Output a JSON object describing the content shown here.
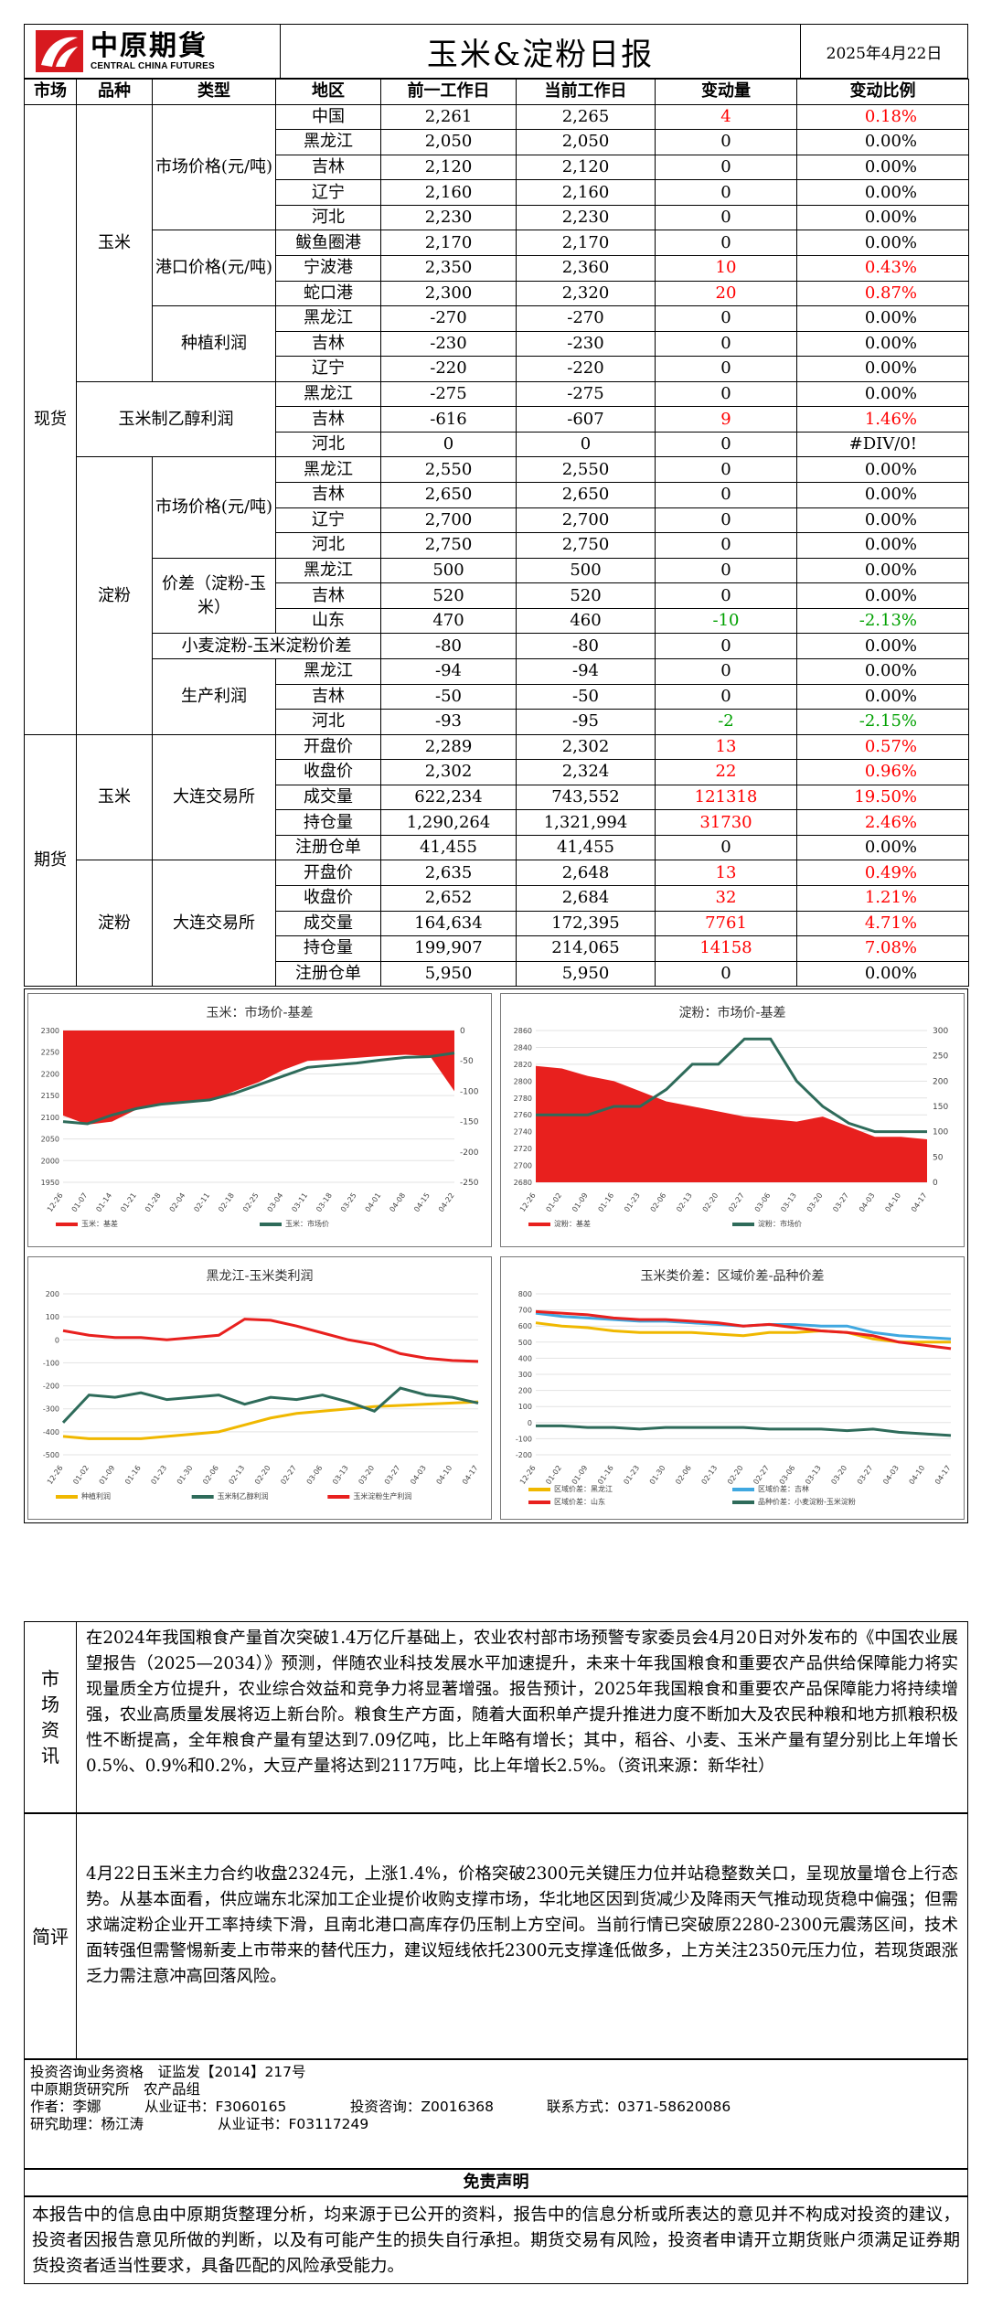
{
  "header": {
    "logo_cn": "中原期貨",
    "logo_en": "CENTRAL CHINA FUTURES",
    "title": "玉米&淀粉日报",
    "date": "2025年4月22日"
  },
  "table": {
    "headers": [
      "市场",
      "品种",
      "类型",
      "地区",
      "前一工作日",
      "当前工作日",
      "变动量",
      "变动比例"
    ],
    "groups": {
      "spot": "现货",
      "futures": "期货",
      "corn": "玉米",
      "starch": "淀粉",
      "market_price": "市场价格(元/吨)",
      "port_price": "港口价格(元/吨)",
      "planting_profit": "种植利润",
      "ethanol_profit": "玉米制乙醇利润",
      "starch_market_price": "市场价格(元/吨)",
      "spread": "价差（淀粉-玉米）",
      "wheat_spread": "小麦淀粉-玉米淀粉价差",
      "production_profit": "生产利润",
      "dce": "大连交易所"
    },
    "rows": [
      {
        "region": "中国",
        "prev": "2,261",
        "curr": "2,265",
        "chg": "4",
        "pct": "0.18%",
        "c": "red"
      },
      {
        "region": "黑龙江",
        "prev": "2,050",
        "curr": "2,050",
        "chg": "0",
        "pct": "0.00%",
        "c": ""
      },
      {
        "region": "吉林",
        "prev": "2,120",
        "curr": "2,120",
        "chg": "0",
        "pct": "0.00%",
        "c": ""
      },
      {
        "region": "辽宁",
        "prev": "2,160",
        "curr": "2,160",
        "chg": "0",
        "pct": "0.00%",
        "c": ""
      },
      {
        "region": "河北",
        "prev": "2,230",
        "curr": "2,230",
        "chg": "0",
        "pct": "0.00%",
        "c": ""
      },
      {
        "region": "鲅鱼圈港",
        "prev": "2,170",
        "curr": "2,170",
        "chg": "0",
        "pct": "0.00%",
        "c": ""
      },
      {
        "region": "宁波港",
        "prev": "2,350",
        "curr": "2,360",
        "chg": "10",
        "pct": "0.43%",
        "c": "red"
      },
      {
        "region": "蛇口港",
        "prev": "2,300",
        "curr": "2,320",
        "chg": "20",
        "pct": "0.87%",
        "c": "red"
      },
      {
        "region": "黑龙江",
        "prev": "-270",
        "curr": "-270",
        "chg": "0",
        "pct": "0.00%",
        "c": ""
      },
      {
        "region": "吉林",
        "prev": "-230",
        "curr": "-230",
        "chg": "0",
        "pct": "0.00%",
        "c": ""
      },
      {
        "region": "辽宁",
        "prev": "-220",
        "curr": "-220",
        "chg": "0",
        "pct": "0.00%",
        "c": ""
      },
      {
        "region": "黑龙江",
        "prev": "-275",
        "curr": "-275",
        "chg": "0",
        "pct": "0.00%",
        "c": ""
      },
      {
        "region": "吉林",
        "prev": "-616",
        "curr": "-607",
        "chg": "9",
        "pct": "1.46%",
        "c": "red"
      },
      {
        "region": "河北",
        "prev": "0",
        "curr": "0",
        "chg": "0",
        "pct": "#DIV/0!",
        "c": ""
      },
      {
        "region": "黑龙江",
        "prev": "2,550",
        "curr": "2,550",
        "chg": "0",
        "pct": "0.00%",
        "c": ""
      },
      {
        "region": "吉林",
        "prev": "2,650",
        "curr": "2,650",
        "chg": "0",
        "pct": "0.00%",
        "c": ""
      },
      {
        "region": "辽宁",
        "prev": "2,700",
        "curr": "2,700",
        "chg": "0",
        "pct": "0.00%",
        "c": ""
      },
      {
        "region": "河北",
        "prev": "2,750",
        "curr": "2,750",
        "chg": "0",
        "pct": "0.00%",
        "c": ""
      },
      {
        "region": "黑龙江",
        "prev": "500",
        "curr": "500",
        "chg": "0",
        "pct": "0.00%",
        "c": ""
      },
      {
        "region": "吉林",
        "prev": "520",
        "curr": "520",
        "chg": "0",
        "pct": "0.00%",
        "c": ""
      },
      {
        "region": "山东",
        "prev": "470",
        "curr": "460",
        "chg": "-10",
        "pct": "-2.13%",
        "c": "green"
      },
      {
        "region": "",
        "prev": "-80",
        "curr": "-80",
        "chg": "0",
        "pct": "0.00%",
        "c": ""
      },
      {
        "region": "黑龙江",
        "prev": "-94",
        "curr": "-94",
        "chg": "0",
        "pct": "0.00%",
        "c": ""
      },
      {
        "region": "吉林",
        "prev": "-50",
        "curr": "-50",
        "chg": "0",
        "pct": "0.00%",
        "c": ""
      },
      {
        "region": "河北",
        "prev": "-93",
        "curr": "-95",
        "chg": "-2",
        "pct": "-2.15%",
        "c": "green"
      },
      {
        "region": "开盘价",
        "prev": "2,289",
        "curr": "2,302",
        "chg": "13",
        "pct": "0.57%",
        "c": "red"
      },
      {
        "region": "收盘价",
        "prev": "2,302",
        "curr": "2,324",
        "chg": "22",
        "pct": "0.96%",
        "c": "red"
      },
      {
        "region": "成交量",
        "prev": "622,234",
        "curr": "743,552",
        "chg": "121318",
        "pct": "19.50%",
        "c": "red"
      },
      {
        "region": "持仓量",
        "prev": "1,290,264",
        "curr": "1,321,994",
        "chg": "31730",
        "pct": "2.46%",
        "c": "red"
      },
      {
        "region": "注册仓单",
        "prev": "41,455",
        "curr": "41,455",
        "chg": "0",
        "pct": "0.00%",
        "c": ""
      },
      {
        "region": "开盘价",
        "prev": "2,635",
        "curr": "2,648",
        "chg": "13",
        "pct": "0.49%",
        "c": "red"
      },
      {
        "region": "收盘价",
        "prev": "2,652",
        "curr": "2,684",
        "chg": "32",
        "pct": "1.21%",
        "c": "red"
      },
      {
        "region": "成交量",
        "prev": "164,634",
        "curr": "172,395",
        "chg": "7761",
        "pct": "4.71%",
        "c": "red"
      },
      {
        "region": "持仓量",
        "prev": "199,907",
        "curr": "214,065",
        "chg": "14158",
        "pct": "7.08%",
        "c": "red"
      },
      {
        "region": "注册仓单",
        "prev": "5,950",
        "curr": "5,950",
        "chg": "0",
        "pct": "0.00%",
        "c": ""
      }
    ]
  },
  "chart_data": [
    {
      "type": "area",
      "title": "玉米：市场价-基差",
      "x": [
        "12-26",
        "01-07",
        "01-14",
        "01-21",
        "01-28",
        "02-04",
        "02-11",
        "02-18",
        "02-25",
        "03-04",
        "03-11",
        "03-18",
        "03-25",
        "04-01",
        "04-08",
        "04-15",
        "04-22"
      ],
      "series": [
        {
          "name": "玉米：基差",
          "axis": "right",
          "color": "#e8201e",
          "values": [
            -140,
            -155,
            -150,
            -130,
            -120,
            -118,
            -115,
            -100,
            -85,
            -65,
            -50,
            -48,
            -45,
            -42,
            -40,
            -42,
            -100
          ]
        },
        {
          "name": "玉米：市场价",
          "axis": "left",
          "color": "#2e6b5a",
          "values": [
            2090,
            2085,
            2105,
            2120,
            2130,
            2135,
            2140,
            2155,
            2175,
            2195,
            2215,
            2220,
            2225,
            2232,
            2238,
            2240,
            2248
          ]
        }
      ],
      "ylim_left": [
        1950,
        2300
      ],
      "ylim_right": [
        -250,
        0
      ],
      "yticks_left": [
        "2300",
        "2250",
        "2200",
        "2150",
        "2100",
        "2050",
        "2000",
        "1950"
      ],
      "yticks_right": [
        "0",
        "-50",
        "-100",
        "-150",
        "-200",
        "-250"
      ],
      "legend": "bottom"
    },
    {
      "type": "area",
      "title": "淀粉：市场价-基差",
      "x": [
        "12-26",
        "01-02",
        "01-09",
        "01-16",
        "01-23",
        "02-06",
        "02-13",
        "02-20",
        "02-27",
        "03-06",
        "03-13",
        "03-20",
        "03-27",
        "04-03",
        "04-10",
        "04-17"
      ],
      "series": [
        {
          "name": "淀粉：基差",
          "axis": "right",
          "color": "#e8201e",
          "values": [
            230,
            225,
            210,
            200,
            180,
            160,
            150,
            140,
            130,
            125,
            120,
            130,
            110,
            90,
            90,
            85
          ]
        },
        {
          "name": "淀粉：市场价",
          "axis": "left",
          "color": "#2e6b5a",
          "values": [
            2760,
            2760,
            2760,
            2770,
            2770,
            2790,
            2820,
            2820,
            2850,
            2850,
            2800,
            2770,
            2750,
            2740,
            2740,
            2740
          ]
        }
      ],
      "ylim_left": [
        2680,
        2860
      ],
      "ylim_right": [
        0,
        300
      ],
      "yticks_left": [
        "2860",
        "2840",
        "2820",
        "2800",
        "2780",
        "2760",
        "2740",
        "2720",
        "2700",
        "2680"
      ],
      "yticks_right": [
        "300",
        "250",
        "200",
        "150",
        "100",
        "50",
        "0"
      ],
      "legend": "bottom"
    },
    {
      "type": "line",
      "title": "黑龙江-玉米类利润",
      "x": [
        "12-26",
        "01-02",
        "01-09",
        "01-16",
        "01-23",
        "01-30",
        "02-06",
        "02-13",
        "02-20",
        "02-27",
        "03-06",
        "03-13",
        "03-20",
        "03-27",
        "04-03",
        "04-10",
        "04-17"
      ],
      "series": [
        {
          "name": "种植利润",
          "color": "#f0b800",
          "values": [
            -420,
            -430,
            -430,
            -430,
            -420,
            -410,
            -400,
            -370,
            -340,
            -320,
            -310,
            -300,
            -290,
            -285,
            -280,
            -275,
            -270
          ]
        },
        {
          "name": "玉米制乙醇利润",
          "color": "#2e6b5a",
          "values": [
            -360,
            -240,
            -250,
            -230,
            -260,
            -250,
            -240,
            -280,
            -250,
            -260,
            -240,
            -270,
            -310,
            -210,
            -240,
            -250,
            -275
          ]
        },
        {
          "name": "玉米淀粉生产利润",
          "color": "#e8201e",
          "values": [
            40,
            20,
            10,
            10,
            0,
            10,
            20,
            90,
            85,
            60,
            30,
            0,
            -20,
            -60,
            -80,
            -90,
            -94
          ]
        }
      ],
      "ylim": [
        -500,
        200
      ],
      "yticks": [
        "200",
        "100",
        "0",
        "-100",
        "-200",
        "-300",
        "-400",
        "-500"
      ],
      "legend": "bottom"
    },
    {
      "type": "line",
      "title": "玉米类价差：区域价差-品种价差",
      "x": [
        "12-26",
        "01-02",
        "01-09",
        "01-16",
        "01-23",
        "01-30",
        "02-06",
        "02-13",
        "02-20",
        "02-27",
        "03-06",
        "03-13",
        "03-20",
        "03-27",
        "04-03",
        "04-10",
        "04-17"
      ],
      "series": [
        {
          "name": "区域价差：黑龙江",
          "color": "#f0b800",
          "values": [
            620,
            600,
            590,
            570,
            560,
            560,
            560,
            550,
            540,
            560,
            560,
            570,
            560,
            520,
            500,
            500,
            500
          ]
        },
        {
          "name": "区域价差：吉林",
          "color": "#40a8e0",
          "values": [
            680,
            660,
            650,
            640,
            630,
            630,
            620,
            610,
            600,
            610,
            610,
            600,
            600,
            560,
            540,
            530,
            520
          ]
        },
        {
          "name": "区域价差：山东",
          "color": "#e8201e",
          "values": [
            690,
            680,
            670,
            650,
            640,
            640,
            630,
            620,
            600,
            610,
            590,
            570,
            560,
            540,
            500,
            480,
            460
          ]
        },
        {
          "name": "品种价差：小麦淀粉-玉米淀粉",
          "color": "#2e6b5a",
          "values": [
            -20,
            -20,
            -30,
            -30,
            -40,
            -30,
            -30,
            -30,
            -30,
            -40,
            -40,
            -40,
            -50,
            -40,
            -60,
            -70,
            -80
          ]
        }
      ],
      "ylim": [
        -200,
        800
      ],
      "yticks": [
        "800",
        "700",
        "600",
        "500",
        "400",
        "300",
        "200",
        "100",
        "0",
        "-100",
        "-200"
      ],
      "legend": "bottom"
    }
  ],
  "market_info": {
    "label": "市场资讯",
    "text": "在2024年我国粮食产量首次突破1.4万亿斤基础上，农业农村部市场预警专家委员会4月20日对外发布的《中国农业展望报告（2025—2034）》预测，伴随农业科技发展水平加速提升，未来十年我国粮食和重要农产品供给保障能力将实现量质全方位提升，农业综合效益和竞争力将显著增强。报告预计，2025年我国粮食和重要农产品保障能力将持续增强，农业高质量发展将迈上新台阶。粮食生产方面，随着大面积单产提升推进力度不断加大及农民种粮和地方抓粮积极性不断提高，全年粮食产量有望达到7.09亿吨，比上年略有增长；其中，稻谷、小麦、玉米产量有望分别比上年增长0.5%、0.9%和0.2%，大豆产量将达到2117万吨，比上年增长2.5%。（资讯来源：新华社）"
  },
  "comment": {
    "label": "简评",
    "text": "4月22日玉米主力合约收盘2324元，上涨1.4%，价格突破2300元关键压力位并站稳整数关口，呈现放量增仓上行态势。从基本面看，供应端东北深加工企业提价收购支撑市场，华北地区因到货减少及降雨天气推动现货稳中偏强；但需求端淀粉企业开工率持续下滑，且南北港口高库存仍压制上方空间。当前行情已突破原2280-2300元震荡区间，技术面转强但需警惕新麦上市带来的替代压力，建议短线依托2300元支撑逢低做多，上方关注2350元压力位，若现货跟涨乏力需注意冲高回落风险。"
  },
  "footer": {
    "line1": "投资咨询业务资格　证监发【2014】217号",
    "line2": "中原期货研究所　农产品组",
    "author": "作者：李娜",
    "author_cert": "从业证书：F3060165",
    "invest_cert": "投资咨询：Z0016368",
    "contact": "联系方式：0371-58620086",
    "assistant": "研究助理：杨江涛",
    "assistant_cert": "从业证书：F03117249"
  },
  "disclaimer": {
    "title": "免责声明",
    "text": "本报告中的信息由中原期货整理分析，均来源于已公开的资料，报告中的信息分析或所表达的意见并不构成对投资的建议，投资者因报告意见所做的判断，以及有可能产生的损失自行承担。期货交易有风险，投资者申请开立期货账户须满足证券期货投资者适当性要求，具备匹配的风险承受能力。"
  },
  "colors": {
    "up": "#ff0000",
    "down": "#00a000",
    "logo": "#d7191f"
  }
}
